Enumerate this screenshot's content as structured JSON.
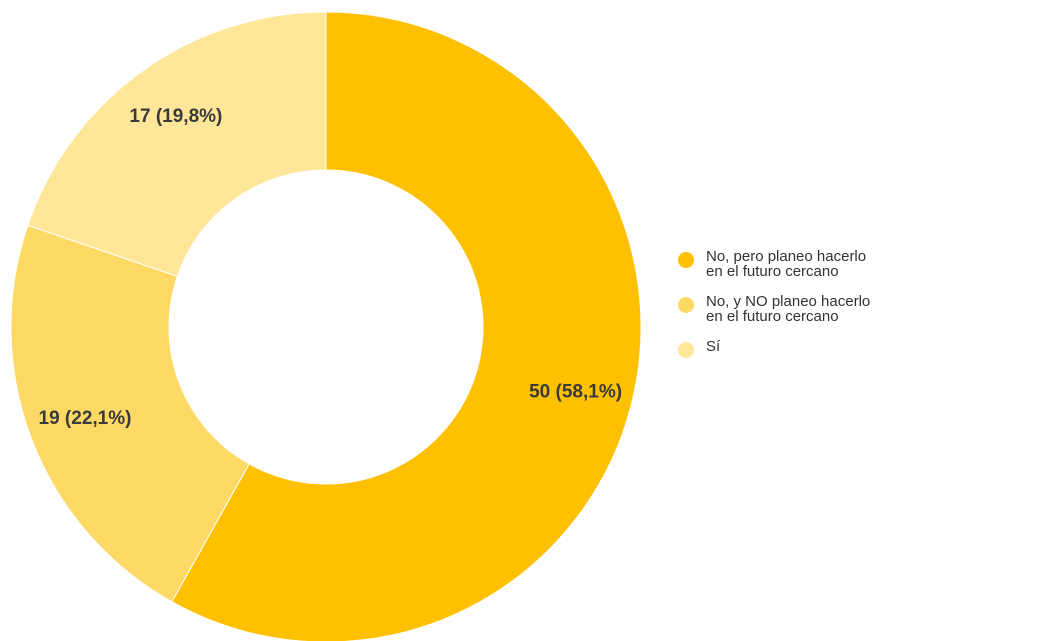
{
  "chart_data": {
    "type": "pie",
    "donut": true,
    "legend_position": "right",
    "series": [
      {
        "name": "No, pero planeo hacerlo en el futuro cercano",
        "value": 50,
        "percent_label": "50 (58,1%)",
        "color": "#FFC000"
      },
      {
        "name": "No, y NO planeo hacerlo en el futuro cercano",
        "value": 19,
        "percent_label": "19 (22,1%)",
        "color": "#FFD966"
      },
      {
        "name": "Sí",
        "value": 17,
        "percent_label": "17 (19,8%)",
        "color": "#FFE699"
      }
    ]
  }
}
